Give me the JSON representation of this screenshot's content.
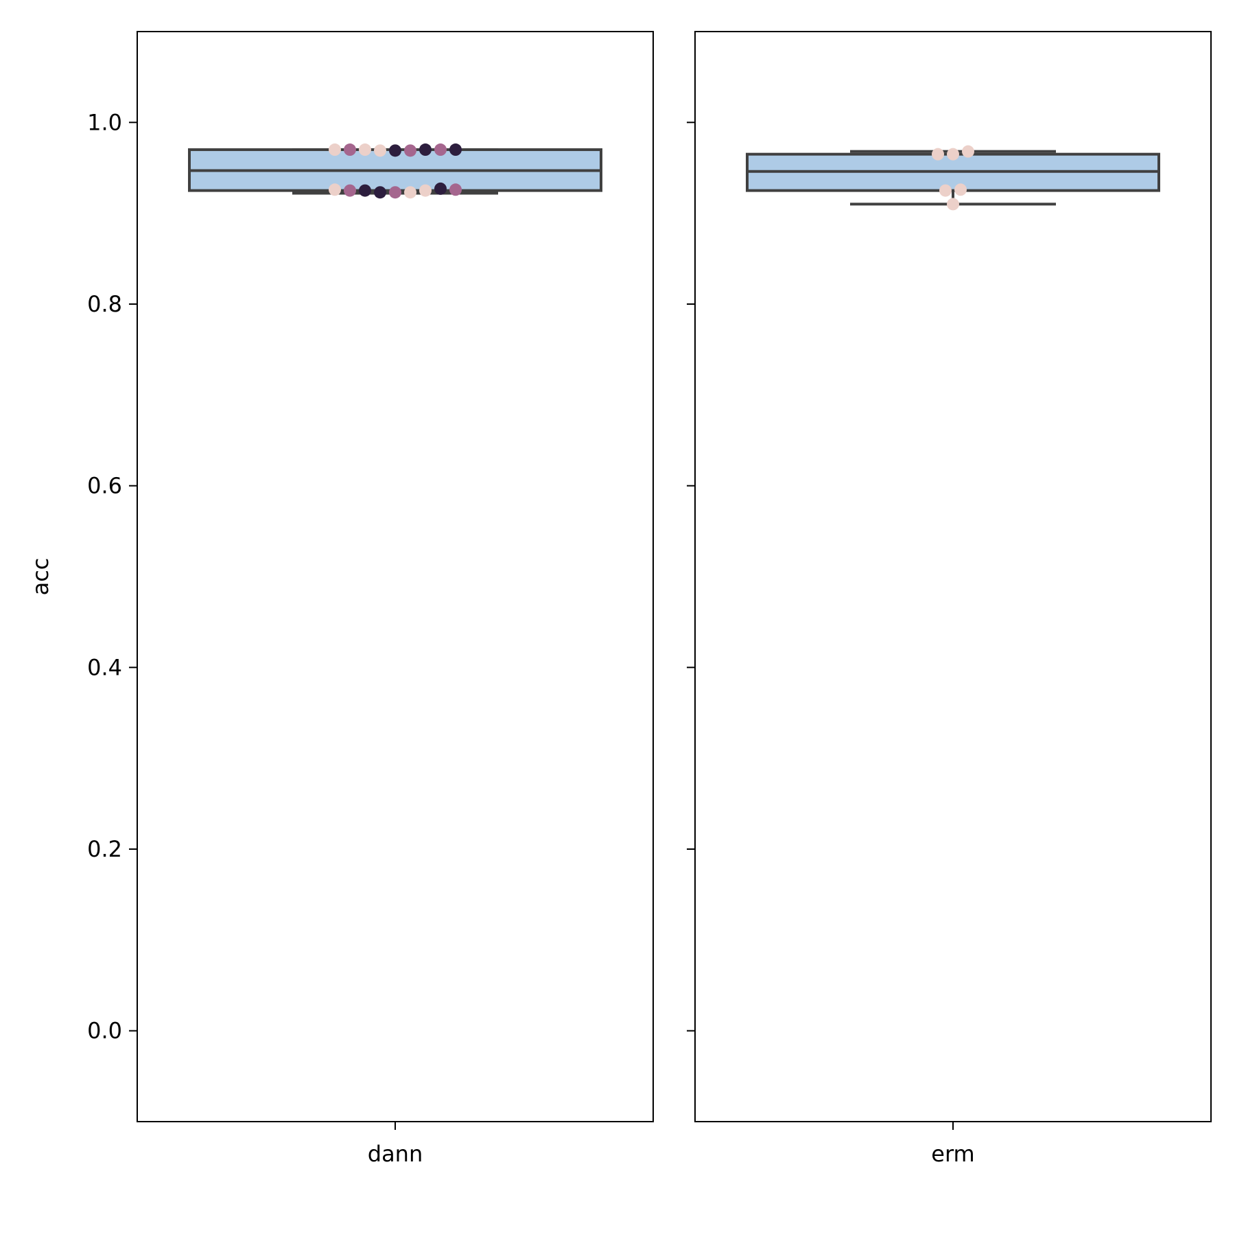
{
  "chart_data": {
    "type": "box",
    "ylabel": "acc",
    "ylim": [
      -0.1,
      1.1
    ],
    "yticks": [
      0.0,
      0.2,
      0.4,
      0.6,
      0.8,
      1.0
    ],
    "ytick_labels": [
      "0.0",
      "0.2",
      "0.4",
      "0.6",
      "0.8",
      "1.0"
    ],
    "grid": false,
    "box_color": "#aecbe6",
    "box_edge_color": "#404040",
    "point_palette": [
      "#ecd0c9",
      "#a5668e",
      "#2d1e3e"
    ],
    "panels": [
      {
        "category": "dann",
        "box": {
          "q1": 0.925,
          "median": 0.947,
          "q3": 0.97,
          "whisker_low": 0.922,
          "whisker_high": 0.97
        },
        "points": [
          {
            "y": 0.97,
            "color_index": 0
          },
          {
            "y": 0.97,
            "color_index": 1
          },
          {
            "y": 0.97,
            "color_index": 0
          },
          {
            "y": 0.969,
            "color_index": 0
          },
          {
            "y": 0.969,
            "color_index": 2
          },
          {
            "y": 0.969,
            "color_index": 1
          },
          {
            "y": 0.97,
            "color_index": 2
          },
          {
            "y": 0.97,
            "color_index": 1
          },
          {
            "y": 0.97,
            "color_index": 2
          },
          {
            "y": 0.926,
            "color_index": 0
          },
          {
            "y": 0.925,
            "color_index": 1
          },
          {
            "y": 0.925,
            "color_index": 2
          },
          {
            "y": 0.923,
            "color_index": 2
          },
          {
            "y": 0.923,
            "color_index": 1
          },
          {
            "y": 0.923,
            "color_index": 0
          },
          {
            "y": 0.925,
            "color_index": 0
          },
          {
            "y": 0.927,
            "color_index": 2
          },
          {
            "y": 0.926,
            "color_index": 1
          }
        ]
      },
      {
        "category": "erm",
        "box": {
          "q1": 0.925,
          "median": 0.946,
          "q3": 0.965,
          "whisker_low": 0.91,
          "whisker_high": 0.968
        },
        "points": [
          {
            "y": 0.965,
            "color_index": 0
          },
          {
            "y": 0.965,
            "color_index": 0
          },
          {
            "y": 0.968,
            "color_index": 0
          },
          {
            "y": 0.925,
            "color_index": 0
          },
          {
            "y": 0.926,
            "color_index": 0
          },
          {
            "y": 0.91,
            "color_index": 0
          }
        ]
      }
    ]
  }
}
